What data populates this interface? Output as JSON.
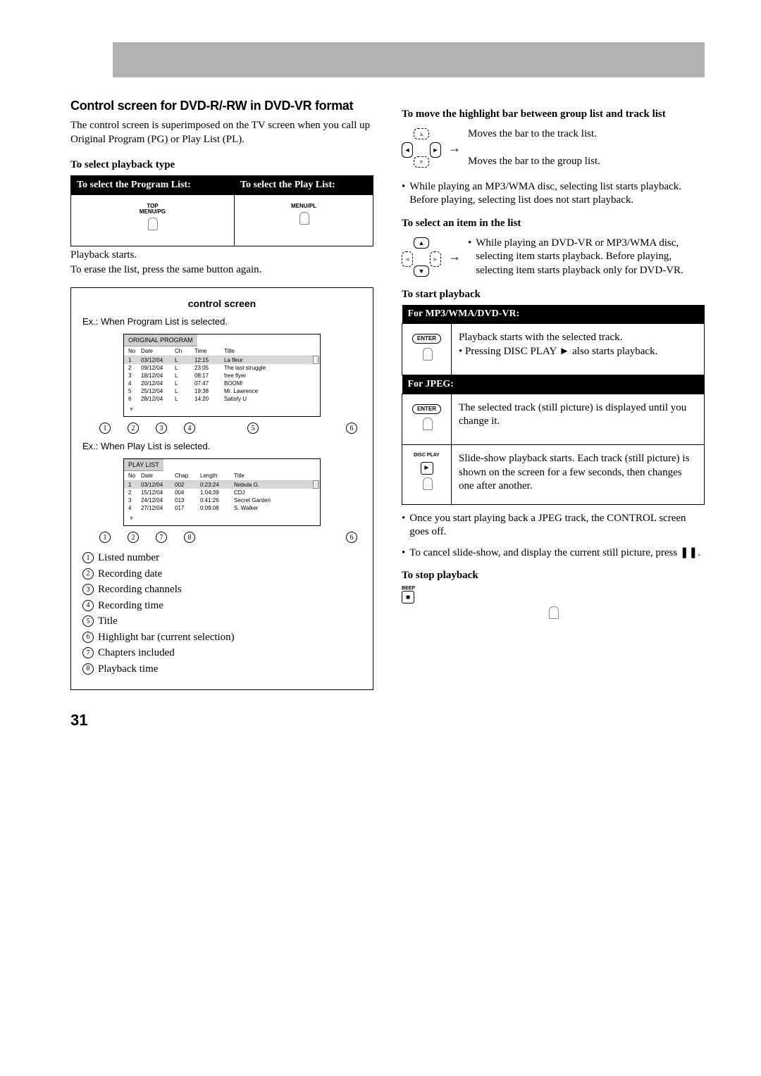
{
  "title": "Control screen for DVD-R/-RW in DVD-VR format",
  "intro": "The control screen is superimposed on the TV screen when you call up Original Program (PG) or Play List (PL).",
  "select_type_heading": "To select playback type",
  "select_table": {
    "h1": "To select the Program List:",
    "h2": "To select the Play List:",
    "b1": "TOP\nMENU/PG",
    "b2": "MENU/PL"
  },
  "playback_starts": "Playback starts.",
  "erase_note": "To erase the list, press the same button again.",
  "control_screen_label": "control screen",
  "ex1": "Ex.: When Program List is selected.",
  "ex2": "Ex.: When Play List is selected.",
  "program_screen": {
    "header": "ORIGINAL PROGRAM",
    "cols": [
      "No",
      "Date",
      "Ch",
      "Time",
      "Title"
    ],
    "rows": [
      [
        "1",
        "03/12/04",
        "L",
        "12:15",
        "La fleur"
      ],
      [
        "2",
        "09/12/04",
        "L",
        "23:05",
        "The last struggle"
      ],
      [
        "3",
        "18/12/04",
        "L",
        "08:17",
        "free flyer"
      ],
      [
        "4",
        "20/12/04",
        "L",
        "07:47",
        "BOOM!"
      ],
      [
        "5",
        "25/12/04",
        "L",
        "19:38",
        "Mr. Lawrence"
      ],
      [
        "6",
        "28/12/04",
        "L",
        "14:20",
        "Satisfy U"
      ]
    ]
  },
  "playlist_screen": {
    "header": "PLAY LIST",
    "cols": [
      "No",
      "Date",
      "Chap",
      "Length",
      "Title"
    ],
    "rows": [
      [
        "1",
        "03/12/04",
        "002",
        "0:23:24",
        "Nebula G."
      ],
      [
        "2",
        "15/12/04",
        "004",
        "1:04:39",
        "CDJ"
      ],
      [
        "3",
        "24/12/04",
        "013",
        "0:41:26",
        "Secret Garden"
      ],
      [
        "4",
        "27/12/04",
        "017",
        "0:09:08",
        "S. Walker"
      ]
    ]
  },
  "markers1": [
    "1",
    "2",
    "3",
    "4",
    "5",
    "6"
  ],
  "markers2": [
    "1",
    "2",
    "7",
    "8",
    "6"
  ],
  "legend": [
    "Listed number",
    "Recording date",
    "Recording channels",
    "Recording time",
    "Title",
    "Highlight bar (current selection)",
    "Chapters included",
    "Playback time"
  ],
  "move_highlight_heading": "To move the highlight bar between group list and track list",
  "move_r": "Moves the bar to the track list.",
  "move_l": "Moves the bar to the group list.",
  "mp3_note": "While playing an MP3/WMA disc, selecting list starts playback. Before playing, selecting list does not start playback.",
  "select_item_heading": "To select an item in the list",
  "select_item_note": "While playing an DVD-VR or MP3/WMA disc, selecting item starts playback. Before playing, selecting item starts playback only for DVD-VR.",
  "start_playback_heading": "To start playback",
  "mp3_header": "For MP3/WMA/DVD-VR:",
  "mp3_desc": "Playback starts with the selected track.",
  "mp3_sub": "Pressing DISC PLAY ► also starts playback.",
  "jpeg_header": "For JPEG:",
  "jpeg_desc1": "The selected track (still picture) is displayed until you change it.",
  "jpeg_desc2": "Slide-show playback starts. Each track (still picture) is shown on the screen for a few seconds, then changes one after another.",
  "jpeg_note1": "Once you start playing back a JPEG track, the CONTROL screen goes off.",
  "jpeg_note2": "To cancel slide-show, and display the current still picture, press ❚❚.",
  "stop_heading": "To stop playback",
  "enter_label": "ENTER",
  "disc_play_label": "DISC PLAY",
  "beep_label": "BEEP",
  "page_number": "31"
}
